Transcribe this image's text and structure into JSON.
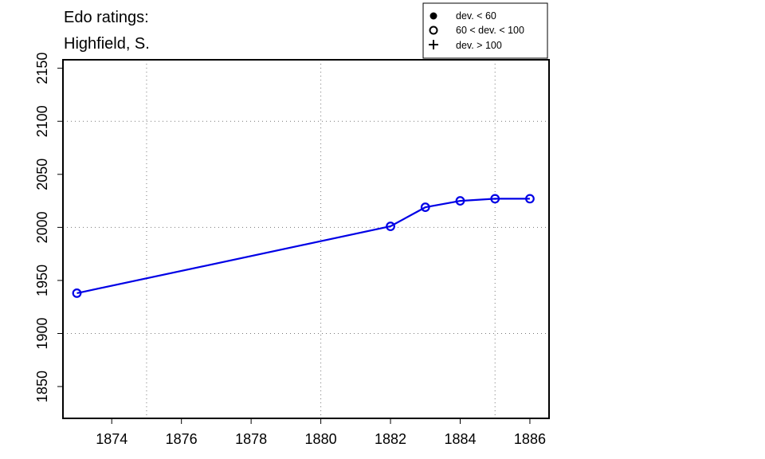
{
  "chart_data": {
    "type": "line",
    "title_lines": [
      "Edo ratings:",
      "Highfield, S."
    ],
    "xlabel": "",
    "ylabel": "",
    "xlim": [
      1872.6,
      1886.55
    ],
    "ylim": [
      1820,
      2158
    ],
    "x_ticks": [
      1874,
      1876,
      1878,
      1880,
      1882,
      1884,
      1886
    ],
    "y_ticks": [
      1850,
      1900,
      1950,
      2000,
      2050,
      2100,
      2150
    ],
    "grid_x": [
      1875,
      1880,
      1885
    ],
    "grid_y": [
      1900,
      2000,
      2100
    ],
    "grid": true,
    "legend_position": "top-right",
    "legend": [
      {
        "marker": "filled-circle",
        "label": "dev. < 60"
      },
      {
        "marker": "open-circle",
        "label": "60 < dev. < 100"
      },
      {
        "marker": "plus",
        "label": "dev. > 100"
      }
    ],
    "series": [
      {
        "color": "#0000e6",
        "marker": "open-circle",
        "x": [
          1873,
          1882,
          1883,
          1884,
          1885,
          1886
        ],
        "y": [
          1938,
          2001,
          2019,
          2025,
          2027,
          2027
        ]
      }
    ]
  }
}
